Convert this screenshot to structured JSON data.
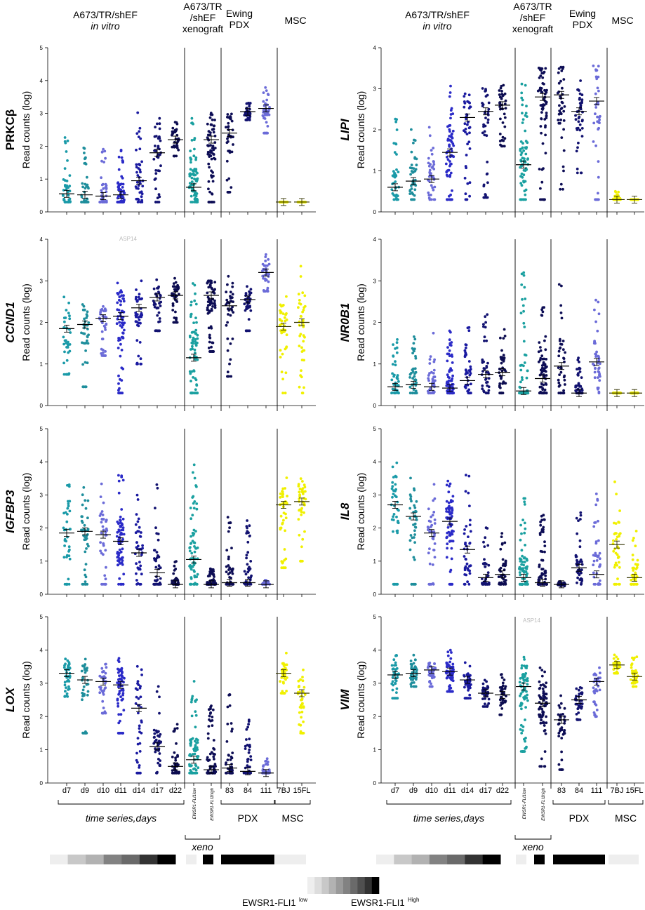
{
  "header": {
    "groups": [
      {
        "lines": [
          "A673/TR/shEF",
          "in vitro"
        ],
        "italic_line": 1
      },
      {
        "lines": [
          "A673/TR",
          "/shEF",
          "xenograft"
        ],
        "italic_line": -1
      },
      {
        "lines": [
          "Ewing",
          "PDX"
        ],
        "italic_line": -1
      },
      {
        "lines": [
          "MSC"
        ],
        "italic_line": -1
      }
    ]
  },
  "x_axis": {
    "sample_labels": [
      "d7",
      "d9",
      "d10",
      "d11",
      "d14",
      "d17",
      "d22",
      "EWSR1-FLI1low",
      "EWSR1-FLI1high",
      "83",
      "84",
      "111",
      "7BJ",
      "15FL"
    ],
    "footer_groups": [
      {
        "label": "time series,days",
        "italic": true
      },
      {
        "label": "xeno",
        "italic": true
      },
      {
        "label": "PDX",
        "italic": false
      },
      {
        "label": "MSC",
        "italic": false
      }
    ]
  },
  "y_axis_label": "Read counts (log)",
  "legend": {
    "low_label": "EWSR1-FLI1",
    "low_sup": "low",
    "high_label": "EWSR1-FLI1",
    "high_sup": "High",
    "gray_levels": [
      "#eeeeee",
      "#dddddd",
      "#c8c8c8",
      "#b2b2b2",
      "#9a9a9a",
      "#828282",
      "#6a6a6a",
      "#505050",
      "#333333",
      "#000000"
    ]
  },
  "stray_labels": [
    "ASP14",
    "ASP14"
  ],
  "colors": {
    "sample_colors": [
      "#1a9aa8",
      "#1e8e9c",
      "#6b6bd8",
      "#2b2bc8",
      "#1a1aa0",
      "#121270",
      "#0c0c50",
      "#1aa0a0",
      "#0d0d55",
      "#0d0d55",
      "#121270",
      "#6b6bd8",
      "#f0f000",
      "#f0f000"
    ],
    "mean_line": "#000000",
    "msc_mean_line": "#333300"
  },
  "chart_data": [
    {
      "type": "scatter",
      "gene": "PRKCβ",
      "ylabel": "Read counts (log)",
      "ylim": [
        0,
        5
      ],
      "yticks": [
        0,
        1,
        2,
        3,
        4,
        5
      ],
      "categories": [
        "d7",
        "d9",
        "d10",
        "d11",
        "d14",
        "d17",
        "d22",
        "EWSR1-FLI1low",
        "EWSR1-FLI1high",
        "83",
        "84",
        "111",
        "7BJ",
        "15FL"
      ],
      "means": [
        0.55,
        0.52,
        0.48,
        0.52,
        0.95,
        1.8,
        2.2,
        0.75,
        2.2,
        2.4,
        3.05,
        3.15,
        0.3,
        0.3
      ],
      "mins": [
        0.3,
        0.3,
        0.3,
        0.3,
        0.3,
        0.3,
        1.7,
        0.3,
        0.3,
        0.6,
        2.8,
        2.4,
        0.3,
        0.3
      ],
      "maxs": [
        2.3,
        2.0,
        1.95,
        2.0,
        3.05,
        3.1,
        2.85,
        2.85,
        3.05,
        3.5,
        3.35,
        3.85,
        0.3,
        0.3
      ]
    },
    {
      "type": "scatter",
      "gene": "LIPI",
      "ylabel": "Read counts (log)",
      "ylim": [
        0,
        4
      ],
      "yticks": [
        0,
        1,
        2,
        3,
        4
      ],
      "categories": [
        "d7",
        "d9",
        "d10",
        "d11",
        "d14",
        "d17",
        "d22",
        "EWSR1-FLI1low",
        "EWSR1-FLI1high",
        "83",
        "84",
        "111",
        "7BJ",
        "15FL"
      ],
      "means": [
        0.6,
        0.75,
        0.8,
        1.45,
        2.3,
        2.45,
        2.6,
        1.15,
        2.8,
        2.85,
        2.45,
        2.7,
        0.3,
        0.3
      ],
      "mins": [
        0.3,
        0.3,
        0.3,
        0.3,
        0.3,
        0.35,
        1.6,
        0.3,
        0.3,
        0.55,
        0.95,
        0.3,
        0.3,
        0.3
      ],
      "maxs": [
        2.3,
        2.05,
        2.25,
        3.1,
        3.3,
        3.15,
        3.1,
        3.15,
        3.6,
        3.8,
        3.35,
        3.65,
        0.5,
        0.3
      ]
    },
    {
      "type": "scatter",
      "gene": "CCND1",
      "ylabel": "Read counts (log)",
      "ylim": [
        0,
        4
      ],
      "yticks": [
        0,
        1,
        2,
        3,
        4
      ],
      "categories": [
        "d7",
        "d9",
        "d10",
        "d11",
        "d14",
        "d17",
        "d22",
        "EWSR1-FLI1low",
        "EWSR1-FLI1high",
        "83",
        "84",
        "111",
        "7BJ",
        "15FL"
      ],
      "means": [
        1.85,
        1.95,
        2.1,
        2.15,
        2.35,
        2.6,
        2.65,
        1.15,
        2.65,
        2.4,
        2.55,
        3.2,
        1.9,
        2.0
      ],
      "mins": [
        0.75,
        0.45,
        1.2,
        0.3,
        1.0,
        1.8,
        2.0,
        0.3,
        1.3,
        0.7,
        1.8,
        2.75,
        0.3,
        0.3
      ],
      "maxs": [
        2.75,
        2.6,
        2.65,
        2.95,
        3.0,
        3.05,
        3.1,
        2.95,
        3.0,
        3.15,
        3.0,
        3.65,
        2.75,
        3.6
      ]
    },
    {
      "type": "scatter",
      "gene": "NR0B1",
      "ylabel": "Read counts (log)",
      "ylim": [
        0,
        4
      ],
      "yticks": [
        0,
        1,
        2,
        3,
        4
      ],
      "categories": [
        "d7",
        "d9",
        "d10",
        "d11",
        "d14",
        "d17",
        "d22",
        "EWSR1-FLI1low",
        "EWSR1-FLI1high",
        "83",
        "84",
        "111",
        "7BJ",
        "15FL"
      ],
      "means": [
        0.45,
        0.5,
        0.45,
        0.42,
        0.6,
        0.75,
        0.8,
        0.35,
        0.65,
        0.95,
        0.3,
        1.05,
        0.3,
        0.3
      ],
      "mins": [
        0.3,
        0.3,
        0.3,
        0.3,
        0.3,
        0.3,
        0.3,
        0.3,
        0.3,
        0.3,
        0.3,
        0.3,
        0.3,
        0.3
      ],
      "maxs": [
        1.8,
        1.7,
        1.85,
        1.8,
        1.9,
        2.2,
        1.9,
        3.4,
        2.4,
        3.1,
        1.15,
        2.55,
        0.3,
        0.3
      ]
    },
    {
      "type": "scatter",
      "gene": "IGFBP3",
      "ylabel": "Read counts (log)",
      "ylim": [
        0,
        5
      ],
      "yticks": [
        0,
        1,
        2,
        3,
        4,
        5
      ],
      "categories": [
        "d7",
        "d9",
        "d10",
        "d11",
        "d14",
        "d17",
        "d22",
        "EWSR1-FLI1low",
        "EWSR1-FLI1high",
        "83",
        "84",
        "111",
        "7BJ",
        "15FL"
      ],
      "means": [
        1.85,
        1.9,
        1.8,
        1.6,
        1.25,
        0.65,
        0.3,
        1.05,
        0.3,
        0.35,
        0.35,
        0.3,
        2.7,
        2.8
      ],
      "mins": [
        0.3,
        0.3,
        0.3,
        0.3,
        0.3,
        0.3,
        0.3,
        0.3,
        0.3,
        0.3,
        0.3,
        0.3,
        0.8,
        1.0
      ],
      "maxs": [
        3.8,
        3.3,
        3.35,
        3.8,
        3.3,
        3.55,
        1.0,
        4.1,
        0.8,
        2.4,
        2.4,
        0.45,
        3.6,
        3.55
      ]
    },
    {
      "type": "scatter",
      "gene": "IL8",
      "ylabel": "Read counts (log)",
      "ylim": [
        0,
        5
      ],
      "yticks": [
        0,
        1,
        2,
        3,
        4,
        5
      ],
      "categories": [
        "d7",
        "d9",
        "d10",
        "d11",
        "d14",
        "d17",
        "d22",
        "EWSR1-FLI1low",
        "EWSR1-FLI1high",
        "83",
        "84",
        "111",
        "7BJ",
        "15FL"
      ],
      "means": [
        2.7,
        2.35,
        1.85,
        2.2,
        1.35,
        0.5,
        0.6,
        0.5,
        0.35,
        0.3,
        0.8,
        0.6,
        1.5,
        0.5
      ],
      "mins": [
        0.3,
        0.3,
        0.3,
        0.3,
        0.3,
        0.3,
        0.3,
        0.3,
        0.3,
        0.25,
        0.3,
        0.3,
        0.3,
        0.3
      ],
      "maxs": [
        4.25,
        4.0,
        3.45,
        3.45,
        3.75,
        2.3,
        1.9,
        3.0,
        2.4,
        0.4,
        2.55,
        3.2,
        3.4,
        2.0
      ]
    },
    {
      "type": "scatter",
      "gene": "LOX",
      "ylabel": "Read counts (log)",
      "ylim": [
        0,
        5
      ],
      "yticks": [
        0,
        1,
        2,
        3,
        4,
        5
      ],
      "categories": [
        "d7",
        "d9",
        "d10",
        "d11",
        "d14",
        "d17",
        "d22",
        "EWSR1-FLI1low",
        "EWSR1-FLI1high",
        "83",
        "84",
        "111",
        "7BJ",
        "15FL"
      ],
      "means": [
        3.3,
        3.1,
        3.05,
        2.95,
        2.25,
        1.1,
        0.5,
        0.7,
        0.4,
        0.45,
        0.35,
        0.3,
        3.3,
        2.7
      ],
      "mins": [
        2.6,
        1.5,
        2.1,
        1.5,
        0.3,
        0.3,
        0.3,
        0.3,
        0.3,
        0.3,
        0.3,
        0.3,
        2.7,
        1.5
      ],
      "maxs": [
        3.85,
        3.75,
        3.7,
        3.8,
        3.65,
        3.0,
        1.95,
        3.25,
        2.45,
        2.75,
        1.9,
        0.75,
        4.05,
        3.7
      ]
    },
    {
      "type": "scatter",
      "gene": "VIM",
      "ylabel": "Read counts (log)",
      "ylim": [
        0,
        5
      ],
      "yticks": [
        0,
        1,
        2,
        3,
        4,
        5
      ],
      "categories": [
        "d7",
        "d9",
        "d10",
        "d11",
        "d14",
        "d17",
        "d22",
        "EWSR1-FLI1low",
        "EWSR1-FLI1high",
        "83",
        "84",
        "111",
        "7BJ",
        "15FL"
      ],
      "means": [
        3.25,
        3.3,
        3.4,
        3.35,
        3.1,
        2.7,
        2.65,
        2.9,
        2.4,
        1.9,
        2.5,
        3.05,
        3.55,
        3.2
      ],
      "mins": [
        2.55,
        2.9,
        2.9,
        2.75,
        2.55,
        2.3,
        2.05,
        0.95,
        0.5,
        0.4,
        1.9,
        2.0,
        3.3,
        2.9
      ],
      "maxs": [
        3.9,
        3.85,
        3.75,
        4.0,
        3.65,
        3.1,
        3.3,
        3.8,
        3.55,
        2.9,
        3.05,
        3.5,
        3.9,
        3.8
      ]
    }
  ]
}
